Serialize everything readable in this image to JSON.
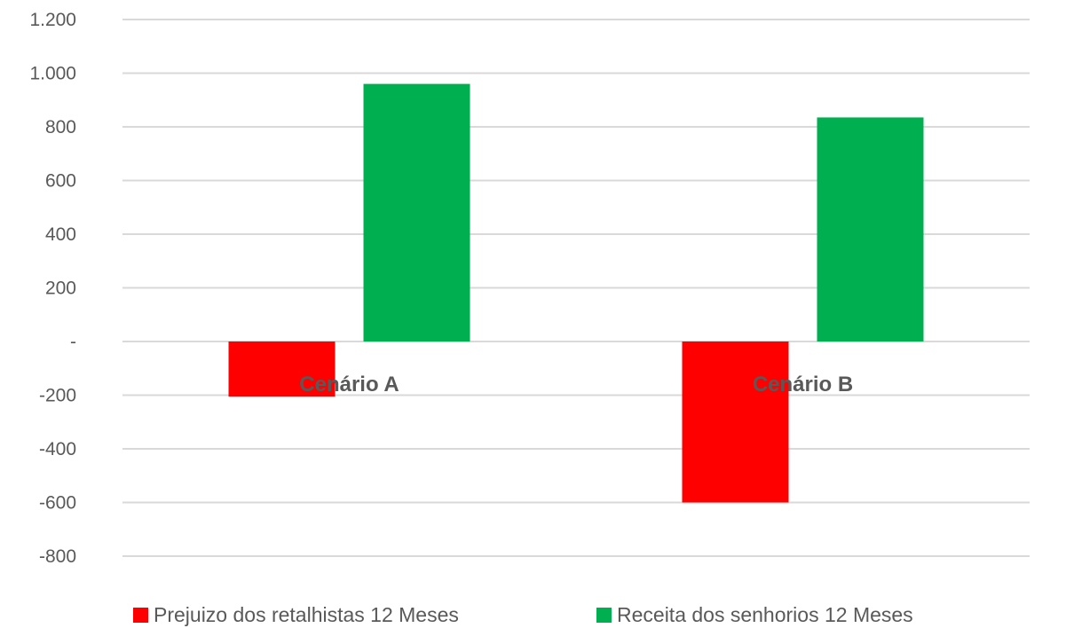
{
  "chart_data": {
    "type": "bar",
    "categories": [
      "Cenário A",
      "Cenário B"
    ],
    "series": [
      {
        "name": "Prejuizo dos retalhistas 12 Meses",
        "color": "#ff0000",
        "values": [
          -205,
          -600
        ]
      },
      {
        "name": "Receita dos senhorios 12 Meses",
        "color": "#00b050",
        "values": [
          960,
          835
        ]
      }
    ],
    "ylim": [
      -800,
      1200
    ],
    "yticks": [
      1200,
      1000,
      800,
      600,
      400,
      200,
      0,
      -200,
      -400,
      -600,
      -800
    ],
    "ytick_labels": [
      "1.200",
      "1.000",
      "800",
      "600",
      "400",
      "200",
      "-",
      "-200",
      "-400",
      "-600",
      "-800"
    ],
    "grid": true,
    "legend_position": "bottom"
  }
}
